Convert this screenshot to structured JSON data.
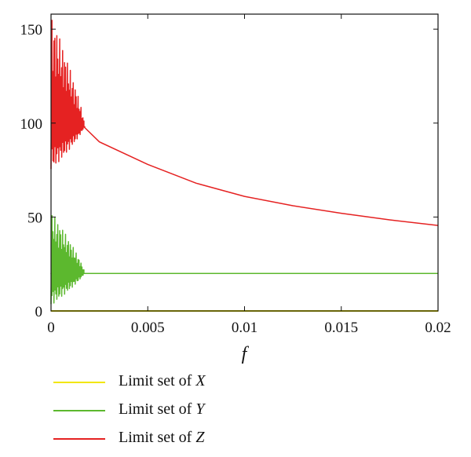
{
  "chart_data": {
    "type": "line",
    "xlabel": "f",
    "xlim": [
      0,
      0.02
    ],
    "ylim": [
      0,
      158
    ],
    "xticks": [
      "0",
      "0.005",
      "0.01",
      "0.015",
      "0.02"
    ],
    "xtick_values": [
      0,
      0.005,
      0.01,
      0.015,
      0.02
    ],
    "yticks": [
      "0",
      "50",
      "100",
      "150"
    ],
    "ytick_values": [
      0,
      50,
      100,
      150
    ],
    "grid": false,
    "legend_position": "bottom-left",
    "series": [
      {
        "name": "Limit set of X",
        "label_prefix": "Limit set of ",
        "label_var": "X",
        "color": "#f2e600",
        "x": [
          0,
          0.02
        ],
        "y": [
          0,
          0
        ]
      },
      {
        "name": "Limit set of Y",
        "label_prefix": "Limit set of ",
        "label_var": "Y",
        "color": "#5cb82e",
        "x": [
          0,
          0.0017,
          0.02
        ],
        "y": [
          20,
          20,
          20
        ],
        "oscillation": {
          "x_end": 0.0017,
          "center": 20,
          "min_start": 3,
          "max_start": 52
        }
      },
      {
        "name": "Limit set of Z",
        "label_prefix": "Limit set of ",
        "label_var": "Z",
        "color": "#e52222",
        "x": [
          0.0017,
          0.0025,
          0.005,
          0.0075,
          0.01,
          0.0125,
          0.015,
          0.0175,
          0.02
        ],
        "y": [
          98,
          90,
          78,
          68,
          61,
          56,
          52,
          48.5,
          45.5
        ],
        "oscillation": {
          "x_end": 0.0017,
          "center": 98,
          "min_start": 75,
          "max_start": 156
        }
      }
    ]
  }
}
